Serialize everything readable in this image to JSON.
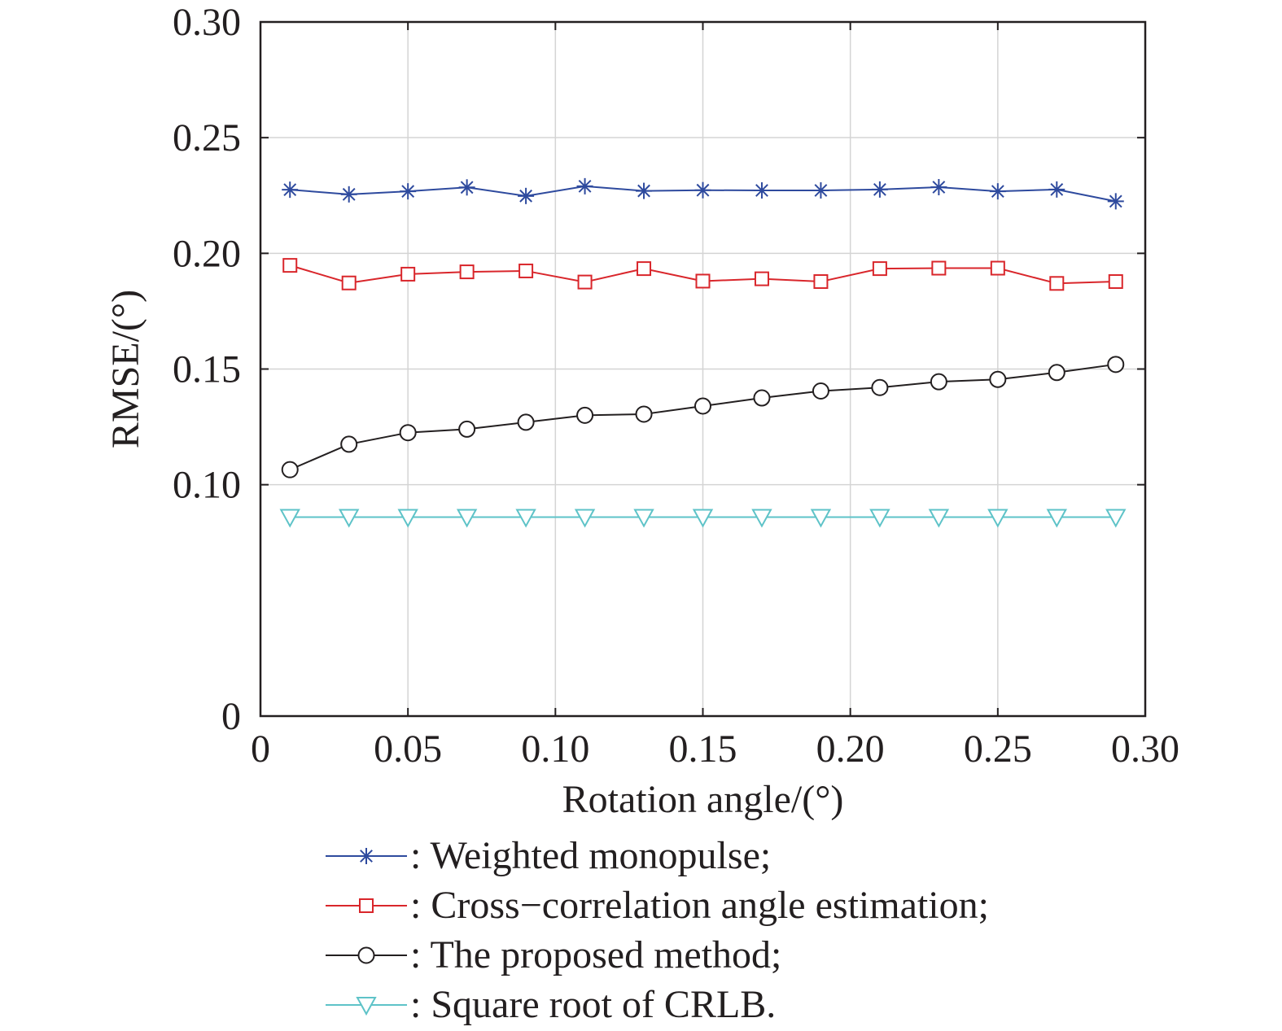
{
  "chart_data": {
    "type": "line",
    "xlabel": "Rotation angle/(°)",
    "ylabel": "RMSE/(°)",
    "xlim": [
      0,
      0.3
    ],
    "ylim": [
      0,
      0.3
    ],
    "grid": true,
    "legend_position": "bottom",
    "x_ticks": [
      "0",
      "0.05",
      "0.10",
      "0.15",
      "0.20",
      "0.25",
      "0.30"
    ],
    "y_ticks": [
      "0",
      "0.10",
      "0.15",
      "0.20",
      "0.25",
      "0.30"
    ],
    "x": [
      0.01,
      0.03,
      0.05,
      0.07,
      0.09,
      0.11,
      0.13,
      0.15,
      0.17,
      0.19,
      0.21,
      0.23,
      0.25,
      0.27,
      0.29
    ],
    "series": [
      {
        "name": ": Weighted monopulse;",
        "color": "#2e4a9e",
        "marker": "asterisk",
        "values": [
          0.2275,
          0.2255,
          0.2268,
          0.2285,
          0.2248,
          0.229,
          0.227,
          0.2273,
          0.2272,
          0.2272,
          0.2276,
          0.2286,
          0.2268,
          0.2276,
          0.2225
        ]
      },
      {
        "name": ": Cross−correlation angle estimation;",
        "color": "#d9262b",
        "marker": "square",
        "values": [
          0.1948,
          0.1872,
          0.191,
          0.192,
          0.1924,
          0.1876,
          0.1934,
          0.188,
          0.189,
          0.1878,
          0.1934,
          0.1936,
          0.1936,
          0.187,
          0.1878
        ]
      },
      {
        "name": ": The proposed method;",
        "color": "#231f20",
        "marker": "circle",
        "values": [
          0.1065,
          0.1175,
          0.1225,
          0.124,
          0.127,
          0.13,
          0.1305,
          0.134,
          0.1375,
          0.1405,
          0.142,
          0.1445,
          0.1455,
          0.1485,
          0.152
        ]
      },
      {
        "name": ": Square root of CRLB.",
        "color": "#5ec3c8",
        "marker": "triangle-down",
        "values": [
          0.086,
          0.086,
          0.086,
          0.086,
          0.086,
          0.086,
          0.086,
          0.086,
          0.086,
          0.086,
          0.086,
          0.086,
          0.086,
          0.086,
          0.086
        ]
      }
    ]
  }
}
